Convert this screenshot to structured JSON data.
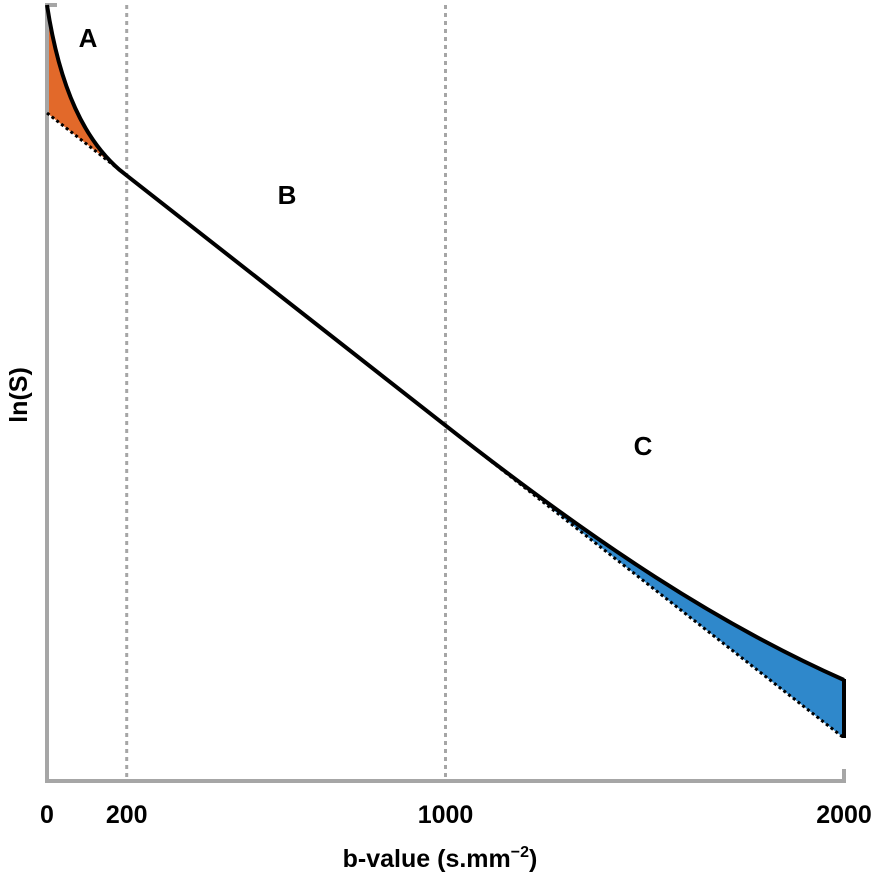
{
  "chart_data": {
    "type": "line",
    "title": "",
    "xlabel": "b-value (s.mm",
    "xlabel_sup": "−2",
    "xlabel_end": ")",
    "ylabel": "ln(S)",
    "xlim": [
      0,
      2000
    ],
    "x_ticks": [
      {
        "value": 0,
        "label": "0"
      },
      {
        "value": 200,
        "label": "200"
      },
      {
        "value": 1000,
        "label": "1000"
      },
      {
        "value": 2000,
        "label": "2000"
      }
    ],
    "vertical_reference_lines": [
      200,
      1000
    ],
    "regions": [
      {
        "label": "A",
        "range": [
          0,
          200
        ],
        "fill": "#e2692a"
      },
      {
        "label": "B",
        "range": [
          200,
          1000
        ],
        "fill": null
      },
      {
        "label": "C",
        "range": [
          1000,
          2000
        ],
        "fill": "#2f88cb"
      }
    ],
    "series": [
      {
        "style": "solid",
        "color": "#000000"
      },
      {
        "style": "dotted",
        "color": "#000000"
      }
    ],
    "axis_color": "#a6a6a6",
    "grid": false
  }
}
